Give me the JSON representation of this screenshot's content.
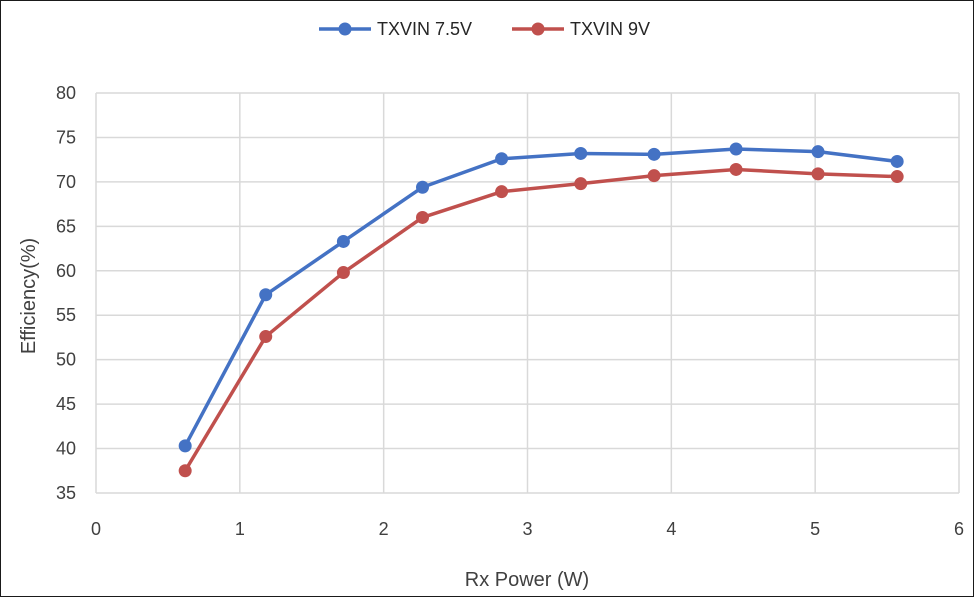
{
  "chart_data": {
    "type": "line",
    "title": "",
    "xlabel": "Rx Power (W)",
    "ylabel": "Efficiency(%)",
    "xlim": [
      0,
      6
    ],
    "ylim": [
      35,
      80
    ],
    "x_ticks": [
      "0",
      "1",
      "2",
      "3",
      "4",
      "5",
      "6"
    ],
    "y_ticks": [
      "35",
      "40",
      "45",
      "50",
      "55",
      "60",
      "65",
      "70",
      "75",
      "80"
    ],
    "grid": true,
    "legend_position": "top-center",
    "series": [
      {
        "name": "TXVIN 7.5V",
        "color": "#4472c4",
        "x": [
          0.62,
          1.18,
          1.72,
          2.27,
          2.82,
          3.37,
          3.88,
          4.45,
          5.02,
          5.57
        ],
        "y": [
          40.3,
          57.3,
          63.3,
          69.4,
          72.6,
          73.2,
          73.1,
          73.7,
          73.4,
          72.3
        ]
      },
      {
        "name": "TXVIN 9V",
        "color": "#c0504d",
        "x": [
          0.62,
          1.18,
          1.72,
          2.27,
          2.82,
          3.37,
          3.88,
          4.45,
          5.02,
          5.57
        ],
        "y": [
          37.5,
          52.6,
          59.8,
          66.0,
          68.9,
          69.8,
          70.7,
          71.4,
          70.9,
          70.6
        ]
      }
    ]
  }
}
